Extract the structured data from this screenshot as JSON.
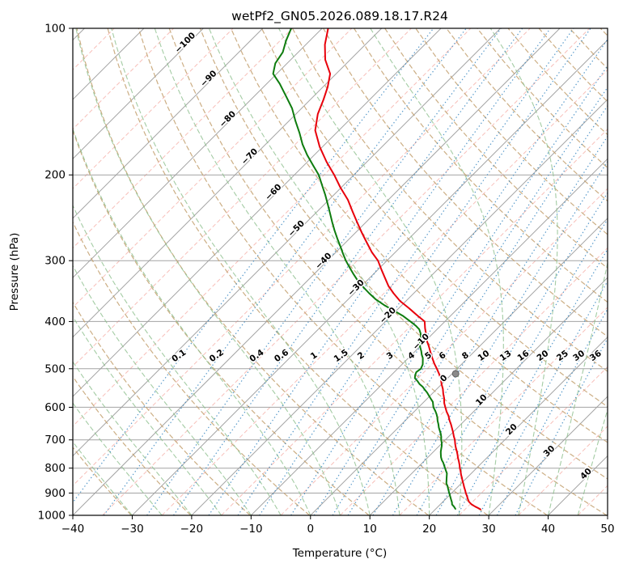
{
  "chart_data": {
    "type": "skewT-logP",
    "title": "wetPf2_GN05.2026.089.18.17.R24",
    "xlabel": "Temperature (°C)",
    "ylabel": "Pressure (hPa)",
    "xlim": [
      -40,
      50
    ],
    "plim": [
      100,
      1000
    ],
    "skew_deg": 45,
    "x_ticks": [
      -40,
      -30,
      -20,
      -10,
      0,
      10,
      20,
      30,
      40,
      50
    ],
    "y_ticks": [
      100,
      200,
      300,
      400,
      500,
      600,
      700,
      800,
      900,
      1000
    ],
    "isotherms": {
      "major_step": 10,
      "minor_step": 5,
      "min": -120,
      "max": 50
    },
    "isotherm_labels": [
      {
        "t": -100,
        "p": 108
      },
      {
        "t": -90,
        "p": 128
      },
      {
        "t": -80,
        "p": 155
      },
      {
        "t": -70,
        "p": 185
      },
      {
        "t": -60,
        "p": 219
      },
      {
        "t": -50,
        "p": 260
      },
      {
        "t": -40,
        "p": 303
      },
      {
        "t": -30,
        "p": 344
      },
      {
        "t": -20,
        "p": 392
      },
      {
        "t": -10,
        "p": 444
      },
      {
        "t": 0,
        "p": 528
      },
      {
        "t": 10,
        "p": 585
      },
      {
        "t": 20,
        "p": 672
      },
      {
        "t": 30,
        "p": 745
      },
      {
        "t": 40,
        "p": 829
      }
    ],
    "mixing_ratios": [
      0.1,
      0.2,
      0.4,
      0.6,
      1,
      1.5,
      2,
      3,
      4,
      5,
      6,
      8,
      10,
      13,
      16,
      20,
      25,
      30,
      36
    ],
    "mixing_label_pressure": 475,
    "dry_adiabats_theta_K": {
      "start": 233,
      "end": 473,
      "step": 10
    },
    "moist_adiabats_t1000": {
      "start": -30,
      "end": 45,
      "step": 5
    },
    "series": [
      {
        "name": "temperature",
        "points": [
          [
            100,
            -79.0
          ],
          [
            108,
            -76.8
          ],
          [
            116,
            -74.2
          ],
          [
            124,
            -71.0
          ],
          [
            132,
            -69.2
          ],
          [
            140,
            -67.8
          ],
          [
            150,
            -66.3
          ],
          [
            162,
            -64.0
          ],
          [
            175,
            -60.5
          ],
          [
            188,
            -56.8
          ],
          [
            200,
            -53.3
          ],
          [
            212,
            -50.2
          ],
          [
            225,
            -46.8
          ],
          [
            238,
            -44.0
          ],
          [
            250,
            -41.5
          ],
          [
            263,
            -38.9
          ],
          [
            275,
            -36.5
          ],
          [
            288,
            -34.0
          ],
          [
            300,
            -31.5
          ],
          [
            313,
            -29.4
          ],
          [
            325,
            -27.5
          ],
          [
            338,
            -25.5
          ],
          [
            350,
            -23.4
          ],
          [
            363,
            -21.0
          ],
          [
            375,
            -18.4
          ],
          [
            388,
            -15.8
          ],
          [
            400,
            -13.4
          ],
          [
            413,
            -12.2
          ],
          [
            425,
            -11.0
          ],
          [
            438,
            -9.8
          ],
          [
            450,
            -8.5
          ],
          [
            463,
            -7.2
          ],
          [
            475,
            -6.0
          ],
          [
            488,
            -4.7
          ],
          [
            500,
            -3.4
          ],
          [
            513,
            -2.1
          ],
          [
            525,
            -1.0
          ],
          [
            538,
            0.0
          ],
          [
            550,
            1.0
          ],
          [
            563,
            1.9
          ],
          [
            575,
            2.8
          ],
          [
            588,
            3.6
          ],
          [
            600,
            4.5
          ],
          [
            613,
            5.5
          ],
          [
            625,
            6.5
          ],
          [
            638,
            7.4
          ],
          [
            650,
            8.3
          ],
          [
            663,
            9.2
          ],
          [
            675,
            10.0
          ],
          [
            688,
            10.8
          ],
          [
            700,
            11.6
          ],
          [
            713,
            12.3
          ],
          [
            725,
            13.0
          ],
          [
            738,
            13.8
          ],
          [
            750,
            14.5
          ],
          [
            763,
            15.2
          ],
          [
            775,
            15.9
          ],
          [
            788,
            16.6
          ],
          [
            800,
            17.2
          ],
          [
            813,
            17.9
          ],
          [
            825,
            18.5
          ],
          [
            838,
            19.2
          ],
          [
            850,
            19.8
          ],
          [
            863,
            20.5
          ],
          [
            875,
            21.1
          ],
          [
            888,
            21.8
          ],
          [
            900,
            22.4
          ],
          [
            913,
            23.1
          ],
          [
            925,
            23.7
          ],
          [
            938,
            24.4
          ],
          [
            950,
            25.3
          ],
          [
            960,
            26.3
          ],
          [
            968,
            27.2
          ],
          [
            972,
            27.6
          ]
        ]
      },
      {
        "name": "dewpoint",
        "points": [
          [
            100,
            -85.2
          ],
          [
            106,
            -84.0
          ],
          [
            112,
            -82.6
          ],
          [
            118,
            -82.0
          ],
          [
            124,
            -80.6
          ],
          [
            130,
            -77.8
          ],
          [
            138,
            -74.6
          ],
          [
            146,
            -71.6
          ],
          [
            155,
            -68.9
          ],
          [
            164,
            -66.2
          ],
          [
            173,
            -63.8
          ],
          [
            182,
            -61.2
          ],
          [
            191,
            -58.5
          ],
          [
            200,
            -55.9
          ],
          [
            210,
            -53.6
          ],
          [
            220,
            -51.4
          ],
          [
            230,
            -49.4
          ],
          [
            240,
            -47.5
          ],
          [
            250,
            -45.7
          ],
          [
            260,
            -43.9
          ],
          [
            270,
            -42.1
          ],
          [
            280,
            -40.3
          ],
          [
            290,
            -38.6
          ],
          [
            300,
            -36.9
          ],
          [
            310,
            -35.1
          ],
          [
            320,
            -33.3
          ],
          [
            330,
            -31.5
          ],
          [
            340,
            -29.5
          ],
          [
            350,
            -27.5
          ],
          [
            360,
            -25.4
          ],
          [
            370,
            -23.0
          ],
          [
            380,
            -20.4
          ],
          [
            390,
            -17.9
          ],
          [
            400,
            -15.8
          ],
          [
            408,
            -14.2
          ],
          [
            415,
            -13.0
          ],
          [
            423,
            -12.1
          ],
          [
            430,
            -11.5
          ],
          [
            438,
            -10.9
          ],
          [
            445,
            -10.5
          ],
          [
            453,
            -9.7
          ],
          [
            460,
            -9.0
          ],
          [
            468,
            -8.3
          ],
          [
            475,
            -7.6
          ],
          [
            483,
            -7.0
          ],
          [
            490,
            -6.5
          ],
          [
            500,
            -6.1
          ],
          [
            508,
            -6.3
          ],
          [
            515,
            -6.0
          ],
          [
            523,
            -5.5
          ],
          [
            530,
            -4.6
          ],
          [
            538,
            -3.7
          ],
          [
            545,
            -2.7
          ],
          [
            553,
            -1.8
          ],
          [
            560,
            -1.0
          ],
          [
            568,
            -0.2
          ],
          [
            575,
            0.5
          ],
          [
            585,
            1.5
          ],
          [
            600,
            2.5
          ],
          [
            610,
            3.4
          ],
          [
            620,
            4.2
          ],
          [
            630,
            4.9
          ],
          [
            640,
            5.5
          ],
          [
            650,
            6.2
          ],
          [
            660,
            6.8
          ],
          [
            670,
            7.5
          ],
          [
            680,
            8.2
          ],
          [
            690,
            8.8
          ],
          [
            700,
            9.3
          ],
          [
            710,
            9.9
          ],
          [
            720,
            10.4
          ],
          [
            730,
            10.8
          ],
          [
            740,
            11.2
          ],
          [
            750,
            11.7
          ],
          [
            760,
            12.2
          ],
          [
            770,
            12.8
          ],
          [
            780,
            13.5
          ],
          [
            790,
            14.1
          ],
          [
            800,
            14.7
          ],
          [
            810,
            15.3
          ],
          [
            820,
            15.9
          ],
          [
            830,
            16.3
          ],
          [
            840,
            16.7
          ],
          [
            850,
            17.1
          ],
          [
            860,
            17.5
          ],
          [
            870,
            18.1
          ],
          [
            880,
            18.6
          ],
          [
            890,
            19.1
          ],
          [
            900,
            19.6
          ],
          [
            910,
            20.1
          ],
          [
            920,
            20.6
          ],
          [
            930,
            21.1
          ],
          [
            940,
            21.6
          ],
          [
            950,
            22.0
          ],
          [
            960,
            22.7
          ],
          [
            970,
            23.3
          ]
        ]
      }
    ],
    "marker": {
      "p": 512,
      "t": 0.6
    },
    "colors": {
      "isotherm_major": "#9e9e9e",
      "isotherm_minor": "#f2948a",
      "dry_adiabat": "#c3a06e",
      "moist_adiabat": "#8dbf8d",
      "mixing_line": "#3585c0",
      "cool_label": "#1f77b4",
      "warm_label": "#bf3f3f",
      "temperature": "#e8000b",
      "dewpoint": "#0e7c0e",
      "marker": "#8a8a8a",
      "frame": "#000000"
    }
  }
}
